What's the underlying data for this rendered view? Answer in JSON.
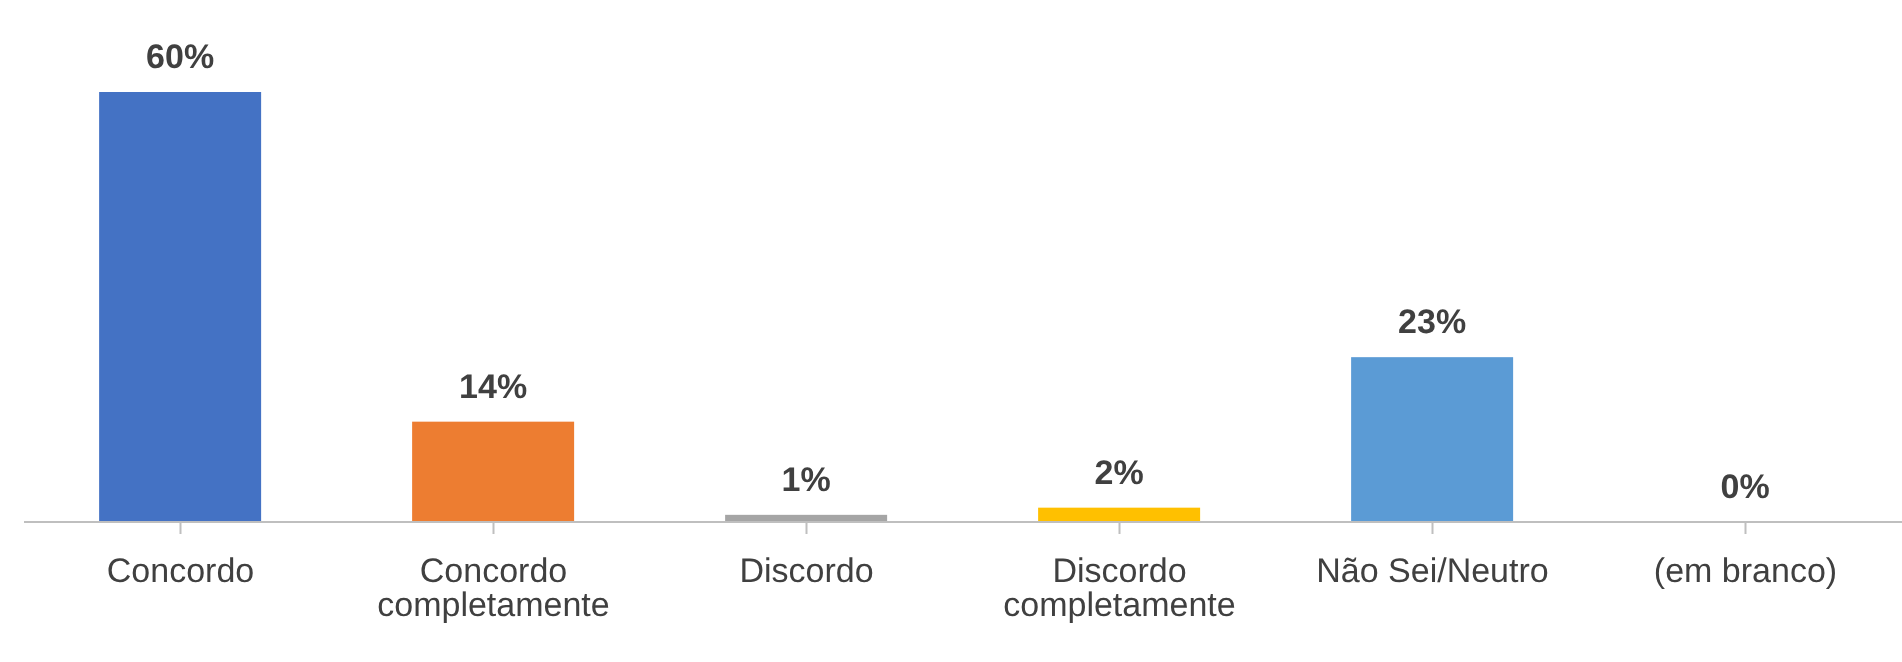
{
  "chart_data": {
    "type": "bar",
    "categories": [
      "Concordo",
      "Concordo completamente",
      "Discordo",
      "Discordo completamente",
      "Não Sei/Neutro",
      "(em branco)"
    ],
    "values": [
      60,
      14,
      1,
      2,
      23,
      0
    ],
    "colors": [
      "#4472c4",
      "#ed7d31",
      "#a5a5a5",
      "#ffc000",
      "#5b9bd5",
      "#70ad47"
    ],
    "value_labels": [
      "60%",
      "14%",
      "1%",
      "2%",
      "23%",
      "0%"
    ]
  }
}
